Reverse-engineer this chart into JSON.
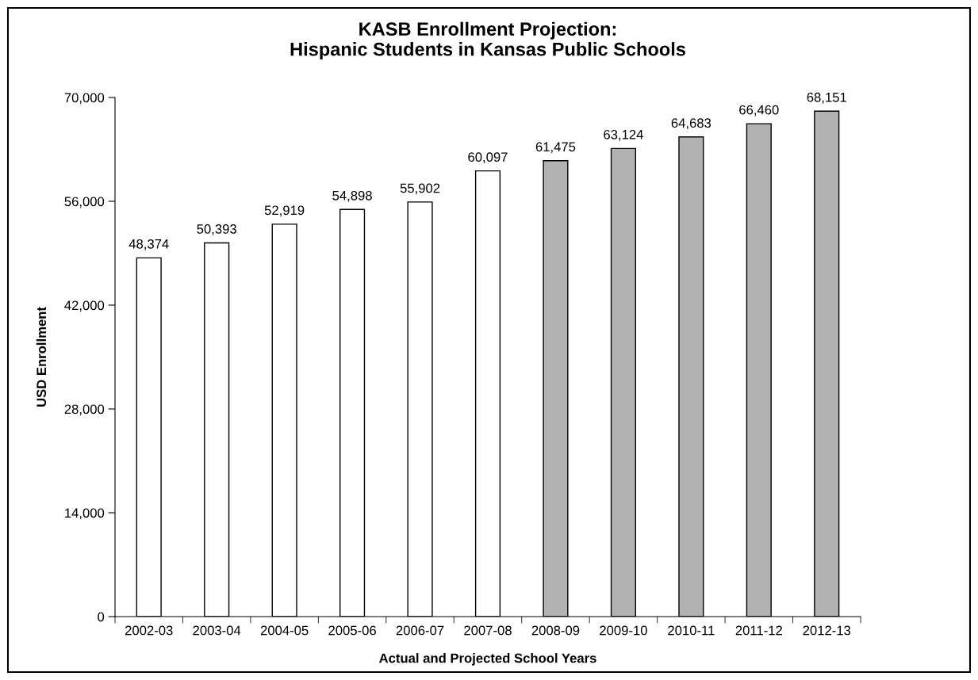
{
  "chart_data": {
    "type": "bar",
    "title": "KASB Enrollment Projection:\nHispanic Students in Kansas Public Schools",
    "xlabel": "Actual and Projected School Years",
    "ylabel": "USD Enrollment",
    "categories": [
      "2002-03",
      "2003-04",
      "2004-05",
      "2005-06",
      "2006-07",
      "2007-08",
      "2008-09",
      "2009-10",
      "2010-11",
      "2011-12",
      "2012-13"
    ],
    "values": [
      48374,
      50393,
      52919,
      54898,
      55902,
      60097,
      61475,
      63124,
      64683,
      66460,
      68151
    ],
    "value_labels": [
      "48,374",
      "50,393",
      "52,919",
      "54,898",
      "55,902",
      "60,097",
      "61,475",
      "63,124",
      "64,683",
      "66,460",
      "68,151"
    ],
    "colors": [
      "#ffffff",
      "#ffffff",
      "#ffffff",
      "#ffffff",
      "#ffffff",
      "#ffffff",
      "#b2b2b2",
      "#b2b2b2",
      "#b2b2b2",
      "#b2b2b2",
      "#b2b2b2"
    ],
    "ylim": [
      0,
      70000
    ],
    "yticks": [
      {
        "value": 0,
        "label": "0"
      },
      {
        "value": 14000,
        "label": "14,000"
      },
      {
        "value": 28000,
        "label": "28,000"
      },
      {
        "value": 42000,
        "label": "42,000"
      },
      {
        "value": 56000,
        "label": "56,000"
      },
      {
        "value": 70000,
        "label": "70,000"
      }
    ],
    "grid": false
  }
}
